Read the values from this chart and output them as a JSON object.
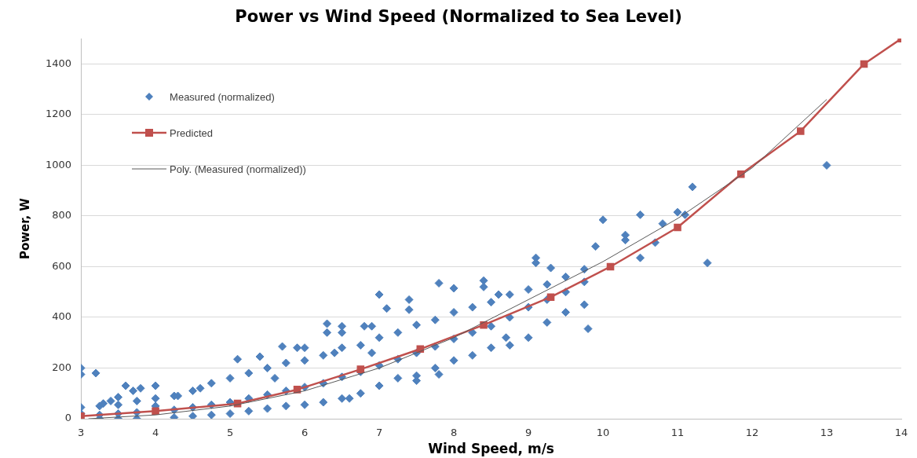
{
  "chart_data": {
    "type": "scatter",
    "title": "Power vs Wind Speed (Normalized to Sea Level)",
    "xlabel": "Wind Speed, m/s",
    "ylabel": "Power, W",
    "xlim": [
      3,
      14
    ],
    "xticks": [
      3,
      4,
      5,
      6,
      7,
      8,
      9,
      10,
      11,
      12,
      13,
      14
    ],
    "ylim": [
      0,
      1500
    ],
    "yticks": [
      0,
      200,
      400,
      600,
      800,
      1000,
      1200,
      1400
    ],
    "grid": "y",
    "legend": "top left",
    "series": [
      {
        "name": "Measured (normalized)",
        "type": "scatter",
        "color": "#4f81bd",
        "marker": "diamond",
        "x": [
          3,
          3,
          3.2,
          3.5,
          3.6,
          3.7,
          3.8,
          4,
          5.1,
          5.4,
          5.7,
          5.9,
          6,
          6.3,
          6.3,
          6.5,
          6.5,
          6.8,
          6.9,
          7,
          7.1,
          7.4,
          7.4,
          7.8,
          8,
          8.4,
          8.4,
          8.6,
          9.1,
          9.1,
          9.3,
          9.8,
          9.9,
          10,
          10.3,
          10.3,
          10.5,
          10.5,
          10.7,
          10.8,
          11,
          11.1,
          11.2,
          11.4,
          13,
          3,
          3,
          3.25,
          3.25,
          3.25,
          3.5,
          3.5,
          3.5,
          3.75,
          3.75,
          3.75,
          4,
          4,
          4.25,
          4.25,
          4.25,
          4.5,
          4.5,
          4.5,
          4.75,
          4.75,
          4.75,
          5,
          5,
          5,
          5.25,
          5.25,
          5.25,
          5.5,
          5.5,
          5.5,
          5.75,
          5.75,
          5.75,
          6,
          6,
          6,
          6.25,
          6.25,
          6.25,
          6.5,
          6.5,
          6.5,
          6.75,
          6.75,
          6.75,
          7,
          7,
          7,
          7.25,
          7.25,
          7.25,
          7.5,
          7.5,
          7.5,
          7.75,
          7.75,
          7.75,
          8,
          8,
          8,
          8.25,
          8.25,
          8.25,
          8.5,
          8.5,
          8.5,
          8.75,
          8.75,
          8.75,
          9,
          9,
          9,
          9.25,
          9.25,
          9.25,
          9.5,
          9.5,
          9.5,
          9.75,
          9.75,
          9.75,
          3.3,
          3.4,
          4.3,
          4.6,
          5.6,
          6.6,
          7.5,
          8.7,
          7.8,
          6.4,
          6.9
        ],
        "values": [
          200,
          175,
          180,
          85,
          130,
          110,
          120,
          130,
          235,
          245,
          285,
          280,
          280,
          375,
          340,
          365,
          340,
          365,
          365,
          490,
          435,
          470,
          430,
          535,
          515,
          545,
          520,
          490,
          635,
          615,
          595,
          355,
          680,
          785,
          725,
          705,
          805,
          635,
          695,
          770,
          815,
          805,
          915,
          615,
          1000,
          20,
          45,
          0,
          15,
          50,
          0,
          20,
          55,
          0,
          25,
          70,
          50,
          80,
          5,
          35,
          90,
          10,
          45,
          110,
          15,
          55,
          140,
          20,
          65,
          160,
          30,
          80,
          180,
          40,
          95,
          200,
          50,
          110,
          220,
          55,
          125,
          230,
          65,
          140,
          250,
          80,
          165,
          280,
          100,
          185,
          290,
          130,
          210,
          320,
          160,
          235,
          340,
          170,
          260,
          370,
          200,
          285,
          390,
          230,
          315,
          420,
          250,
          340,
          440,
          280,
          365,
          460,
          290,
          400,
          490,
          320,
          440,
          510,
          380,
          470,
          530,
          420,
          500,
          560,
          450,
          540,
          590,
          60,
          70,
          90,
          120,
          160,
          80,
          150,
          320,
          175,
          260,
          260
        ]
      },
      {
        "name": "Predicted",
        "type": "line",
        "color": "#c0504d",
        "marker": "square",
        "x": [
          3,
          4,
          5.1,
          5.9,
          6.75,
          7.55,
          8.4,
          9.3,
          10.1,
          11,
          11.85,
          12.65,
          13.5,
          14
        ],
        "values": [
          10,
          30,
          60,
          115,
          195,
          275,
          370,
          480,
          600,
          755,
          965,
          1135,
          1400,
          1500
        ]
      },
      {
        "name": "Poly. (Measured (normalized))",
        "type": "line",
        "color": "#595959",
        "marker": "none",
        "x": [
          3.1,
          4,
          5,
          6,
          7,
          8,
          9,
          10,
          11,
          12,
          13
        ],
        "values": [
          0,
          15,
          50,
          110,
          200,
          320,
          470,
          620,
          790,
          990,
          1260
        ]
      }
    ]
  }
}
